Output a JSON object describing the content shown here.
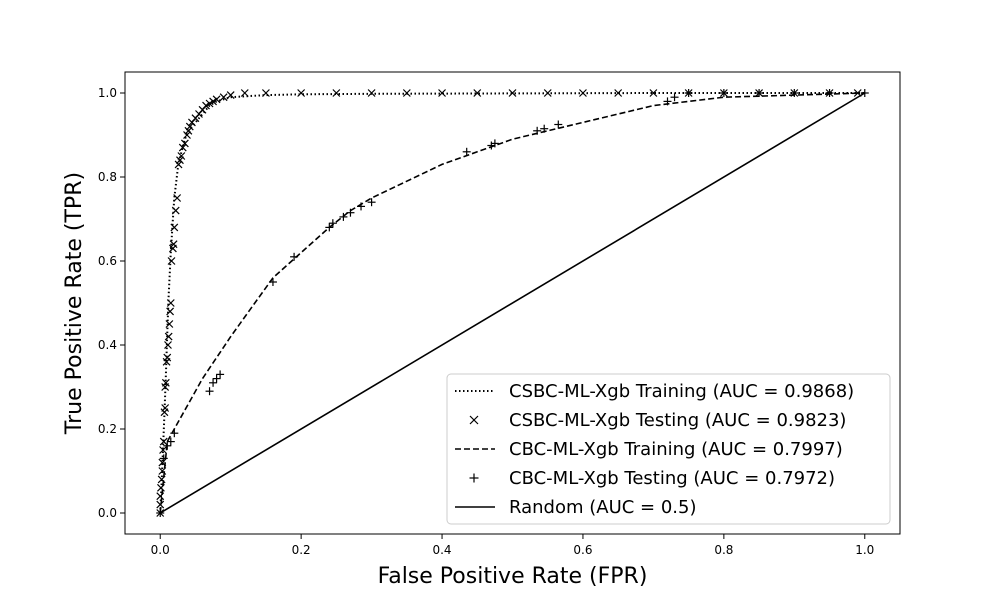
{
  "chart_data": {
    "type": "line",
    "title": "",
    "xlabel": "False Positive Rate (FPR)",
    "ylabel": "True Positive Rate (TPR)",
    "xlim": [
      -0.05,
      1.05
    ],
    "ylim": [
      -0.05,
      1.05
    ],
    "xticks": [
      0.0,
      0.2,
      0.4,
      0.6,
      0.8,
      1.0
    ],
    "yticks": [
      0.0,
      0.2,
      0.4,
      0.6,
      0.8,
      1.0
    ],
    "xtick_labels": [
      "0.0",
      "0.2",
      "0.4",
      "0.6",
      "0.8",
      "1.0"
    ],
    "ytick_labels": [
      "0.0",
      "0.2",
      "0.4",
      "0.6",
      "0.8",
      "1.0"
    ],
    "grid": false,
    "legend_position": "lower-right",
    "color": "#000000",
    "series": [
      {
        "name": "CSBC-ML-Xgb Training (AUC = 0.9868)",
        "style": "dotted",
        "x": [
          0.0,
          0.002,
          0.004,
          0.006,
          0.008,
          0.01,
          0.012,
          0.015,
          0.018,
          0.02,
          0.025,
          0.03,
          0.035,
          0.04,
          0.05,
          0.06,
          0.07,
          0.08,
          0.1,
          0.15,
          0.2,
          0.3,
          0.5,
          0.7,
          1.0
        ],
        "y": [
          0.0,
          0.07,
          0.15,
          0.24,
          0.33,
          0.43,
          0.52,
          0.62,
          0.7,
          0.75,
          0.82,
          0.86,
          0.89,
          0.91,
          0.93,
          0.95,
          0.97,
          0.98,
          0.99,
          0.995,
          0.997,
          0.998,
          0.999,
          1.0,
          1.0
        ]
      },
      {
        "name": "CSBC-ML-Xgb Testing (AUC = 0.9823)",
        "style": "x-markers",
        "x": [
          0.0,
          0.0,
          0.0,
          0.001,
          0.002,
          0.003,
          0.003,
          0.004,
          0.005,
          0.006,
          0.007,
          0.007,
          0.008,
          0.009,
          0.01,
          0.011,
          0.012,
          0.013,
          0.014,
          0.015,
          0.016,
          0.018,
          0.019,
          0.02,
          0.022,
          0.024,
          0.026,
          0.028,
          0.03,
          0.032,
          0.035,
          0.038,
          0.04,
          0.042,
          0.045,
          0.05,
          0.055,
          0.06,
          0.065,
          0.07,
          0.075,
          0.08,
          0.09,
          0.1,
          0.12,
          0.15,
          0.2,
          0.25,
          0.3,
          0.35,
          0.4,
          0.45,
          0.5,
          0.55,
          0.6,
          0.65,
          0.7,
          0.75,
          0.8,
          0.85,
          0.9,
          0.95,
          0.99
        ],
        "y": [
          0.0,
          0.02,
          0.04,
          0.06,
          0.08,
          0.1,
          0.12,
          0.15,
          0.17,
          0.24,
          0.25,
          0.3,
          0.31,
          0.36,
          0.37,
          0.4,
          0.42,
          0.45,
          0.48,
          0.5,
          0.6,
          0.63,
          0.64,
          0.68,
          0.72,
          0.75,
          0.83,
          0.84,
          0.85,
          0.87,
          0.88,
          0.9,
          0.91,
          0.92,
          0.93,
          0.94,
          0.95,
          0.96,
          0.97,
          0.975,
          0.98,
          0.985,
          0.99,
          0.995,
          1.0,
          1.0,
          1.0,
          1.0,
          1.0,
          1.0,
          1.0,
          1.0,
          1.0,
          1.0,
          1.0,
          1.0,
          1.0,
          1.0,
          1.0,
          1.0,
          1.0,
          1.0,
          1.0
        ]
      },
      {
        "name": "CBC-ML-Xgb Training (AUC = 0.7997)",
        "style": "dashed",
        "x": [
          0.0,
          0.01,
          0.02,
          0.04,
          0.06,
          0.08,
          0.1,
          0.13,
          0.16,
          0.2,
          0.24,
          0.27,
          0.3,
          0.35,
          0.4,
          0.45,
          0.5,
          0.55,
          0.6,
          0.65,
          0.7,
          0.75,
          0.8,
          0.9,
          1.0
        ],
        "y": [
          0.0,
          0.17,
          0.2,
          0.26,
          0.32,
          0.37,
          0.42,
          0.49,
          0.56,
          0.62,
          0.68,
          0.72,
          0.75,
          0.79,
          0.83,
          0.86,
          0.89,
          0.91,
          0.93,
          0.95,
          0.97,
          0.98,
          0.99,
          0.995,
          1.0
        ]
      },
      {
        "name": "CBC-ML-Xgb Testing (AUC = 0.7972)",
        "style": "plus-markers",
        "x": [
          0.0,
          0.005,
          0.01,
          0.015,
          0.02,
          0.07,
          0.075,
          0.08,
          0.085,
          0.16,
          0.19,
          0.24,
          0.245,
          0.26,
          0.27,
          0.285,
          0.3,
          0.435,
          0.47,
          0.475,
          0.535,
          0.545,
          0.565,
          0.72,
          0.73,
          0.75,
          0.8,
          0.85,
          0.9,
          0.95,
          1.0
        ],
        "y": [
          0.0,
          0.13,
          0.16,
          0.17,
          0.19,
          0.29,
          0.31,
          0.32,
          0.33,
          0.55,
          0.61,
          0.68,
          0.69,
          0.705,
          0.715,
          0.73,
          0.74,
          0.86,
          0.875,
          0.88,
          0.91,
          0.915,
          0.925,
          0.98,
          0.99,
          1.0,
          1.0,
          1.0,
          1.0,
          1.0,
          1.0
        ]
      },
      {
        "name": "Random (AUC = 0.5)",
        "style": "solid",
        "x": [
          0.0,
          1.0
        ],
        "y": [
          0.0,
          1.0
        ]
      }
    ]
  }
}
